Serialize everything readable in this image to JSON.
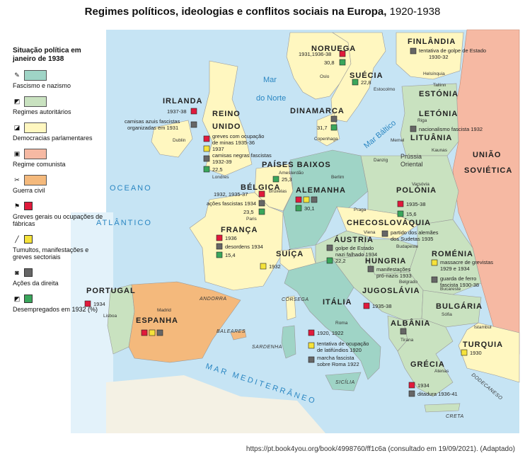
{
  "title": {
    "bold": "Regimes políticos, ideologias e conflitos sociais na Europa,",
    "years": "1920-1938"
  },
  "legend": {
    "heading": "Situação política em janeiro de 1938",
    "items": [
      {
        "label": "Fascismo e nazismo",
        "kind": "box",
        "color": "#9fd4c6"
      },
      {
        "label": "Regimes autoritários",
        "kind": "box",
        "color": "#c9e2c0"
      },
      {
        "label": "Democracias parlamentares",
        "kind": "box",
        "color": "#fff7c0"
      },
      {
        "label": "Regime comunista",
        "kind": "box",
        "color": "#f6b9a3"
      },
      {
        "label": "Guerra civil",
        "kind": "box",
        "color": "#f4b97c"
      },
      {
        "label": "Greves gerais ou ocupações de fábricas",
        "kind": "sq",
        "color": "#e01a3c"
      },
      {
        "label": "Tumultos, manifestações e greves sectoriais",
        "kind": "sq",
        "color": "#f5e23a"
      },
      {
        "label": "Ações da direita",
        "kind": "sq",
        "color": "#666666"
      },
      {
        "label": "Desempregados em 1932 (%)",
        "kind": "sq",
        "color": "#3aa65b"
      }
    ]
  },
  "colors": {
    "sea": "#c6e4f4",
    "fascism": "#9fd4c6",
    "authoritarian": "#c9e2c0",
    "democracy": "#fff7c0",
    "communist": "#f6b9a3",
    "civil_war": "#f4b97c",
    "strike": "#e01a3c",
    "riot": "#f5e23a",
    "right": "#666666",
    "unemployed": "#3aa65b"
  },
  "seas": {
    "oceano": "OCEANO",
    "atlantico": "ATLÂNTICO",
    "mar_norte_1": "Mar",
    "mar_norte_2": "do Norte",
    "mar_baltico": "Mar Báltico",
    "mar_mediterraneo": "MAR MEDITERRÂNEO"
  },
  "countries": {
    "irlanda": "IRLANDA",
    "reino_unido_1": "REINO",
    "reino_unido_2": "UNIDO",
    "noruega": "NORUEGA",
    "suecia": "SUÉCIA",
    "finlandia": "FINLÂNDIA",
    "estonia": "ESTÓNIA",
    "letonia": "LETÓNIA",
    "lituania": "LITUÂNIA",
    "uniao_sovietica_1": "UNIÃO",
    "uniao_sovietica_2": "SOVIÉTICA",
    "dinamarca": "DINAMARCA",
    "paises_baixos": "PAÍSES BAIXOS",
    "belgica": "BÉLGICA",
    "alemanha": "ALEMANHA",
    "polonia": "POLÓNIA",
    "franca": "FRANÇA",
    "suica": "SUÍÇA",
    "austria": "ÁUSTRIA",
    "checoslovaquia": "CHECOSLOVÁQUIA",
    "hungria": "HUNGRIA",
    "romenia": "ROMÉNIA",
    "jugoslavia": "JUGOSLÁVIA",
    "bulgaria": "BULGÁRIA",
    "italia": "ITÁLIA",
    "albania": "ALBÂNIA",
    "portugal": "PORTUGAL",
    "espanha": "ESPANHA",
    "grecia": "GRÉCIA",
    "turquia": "TURQUIA",
    "prussia_1": "Prússia",
    "prussia_2": "Oriental"
  },
  "regions": {
    "corsega": "CÓRSEGA",
    "sardenha": "SARDENHA",
    "baleares": "BALEARES",
    "sicilia": "SICÍLIA",
    "creta": "CRETA",
    "andorra": "ANDORRA",
    "dodecaneso": "DODECANESO"
  },
  "cities": {
    "oslo": "Oslo",
    "estocolmo": "Estocolmo",
    "helsinquia": "Helsínquia",
    "tallinn": "Tallinn",
    "riga": "Riga",
    "memel": "Memel",
    "kaunas": "Kaunas",
    "danzig": "Danzig",
    "varsovia": "Varsóvia",
    "copenhaga": "Copenhaga",
    "dublin": "Dublin",
    "londres": "Londres",
    "amesterdao": "Amesterdão",
    "bruxelas": "Bruxelas",
    "berlim": "Berlim",
    "praga": "Praga",
    "viena": "Viena",
    "budapeste": "Budapeste",
    "paris": "Paris",
    "roma": "Roma",
    "belgrado": "Belgrado",
    "bucareste": "Bucareste",
    "sofia": "Sófia",
    "istambul": "Istambul",
    "tirana": "Tirana",
    "atenas": "Atenas",
    "madrid": "Madrid",
    "lisboa": "Lisboa"
  },
  "notes": {
    "noruega_1": "1931,1936-38",
    "noruega_2": "30,8",
    "suecia": "22,8",
    "finlandia_1": "tentativa de golpe de Estado",
    "finlandia_2": "1930-32",
    "letonia": "nacionalismo fascista 1932",
    "irlanda_1": "1937-38",
    "irlanda_2": "camisas azuis fascistas",
    "irlanda_3": "organizadas em 1931",
    "dinamarca": "31,7",
    "ru_1": "greves com ocupação",
    "ru_2": "de minas 1935-36",
    "ru_3": "1937",
    "ru_4": "camisas negras fascistas",
    "ru_5": "1932-39",
    "ru_6": "22,5",
    "pb": "25,3",
    "belgica_1": "1932, 1935-37",
    "belgica_2": "ações fascistas 1934",
    "belgica_3": "23,5",
    "alemanha": "30,1",
    "polonia_1": "1935-38",
    "polonia_2": "15,6",
    "checo_1": "partido dos alemães",
    "checo_2": "dos Sudetas 1935",
    "franca_1": "1936",
    "franca_2": "desordens 1934",
    "franca_3": "15,4",
    "suica": "1932",
    "austria_1": "golpe de Estado",
    "austria_2": "nazi falhado 1934",
    "austria_3": "22,2",
    "hungria_1": "manifestações",
    "hungria_2": "pró-nazis 1933",
    "romenia_1": "massacre de grevistas",
    "romenia_2": "1929 e 1934",
    "romenia_3": "guarda de ferro",
    "romenia_4": "fascista 1930-38",
    "jugoslavia": "1935-38",
    "portugal": "1934",
    "italia_1": "1920, 1922",
    "italia_2": "tentativa de ocupação",
    "italia_3": "de latifúndios 1920",
    "italia_4": "marcha fascista",
    "italia_5": "sobre Roma 1922",
    "grecia_1": "1934",
    "grecia_2": "ditadura 1936-41",
    "turquia": "1930"
  },
  "source": "https://pt.book4you.org/book/4998760/ff1c6a (consultado em 19/09/2021). (Adaptado)"
}
